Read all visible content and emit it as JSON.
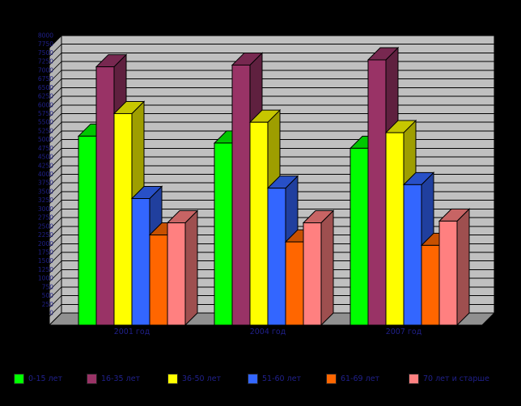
{
  "chart_data": {
    "type": "bar",
    "variant": "3d-column",
    "title": "",
    "categories": [
      "2001 год",
      "2004 год",
      "2007 год"
    ],
    "series": [
      {
        "name": "0-15 лет",
        "color": "#00FF00",
        "values": [
          5450,
          5250,
          5100
        ]
      },
      {
        "name": "16-35 лет",
        "color": "#993366",
        "values": [
          7450,
          7500,
          7650
        ]
      },
      {
        "name": "36-50 лет",
        "color": "#FFFF00",
        "values": [
          6100,
          5850,
          5550
        ]
      },
      {
        "name": "51-60 лет",
        "color": "#3366FF",
        "values": [
          3650,
          3950,
          4050
        ]
      },
      {
        "name": "61-69 лет",
        "color": "#FF6600",
        "values": [
          2600,
          2400,
          2300
        ]
      },
      {
        "name": "70 лет и старше",
        "color": "#FF8080",
        "values": [
          2950,
          2950,
          3000
        ]
      }
    ],
    "ylim": [
      0,
      8000
    ],
    "ystep": 250,
    "yticks": [
      8000,
      7750,
      7500,
      7250,
      7000,
      6750,
      6500,
      6250,
      6000,
      5750,
      5500,
      5250,
      5000,
      4750,
      4500,
      4250,
      4000,
      3750,
      3500,
      3250,
      3000,
      2750,
      2500,
      2250,
      2000,
      1750,
      1500,
      1250,
      1000,
      750,
      500,
      250,
      0
    ],
    "grid": "horizontal",
    "legend_position": "bottom",
    "wall_color": "#C0C0C0",
    "side_wall_color": "#B4B4B4",
    "floor_color": "#909090",
    "background_color": "#000000",
    "text_color": "#20208A"
  }
}
